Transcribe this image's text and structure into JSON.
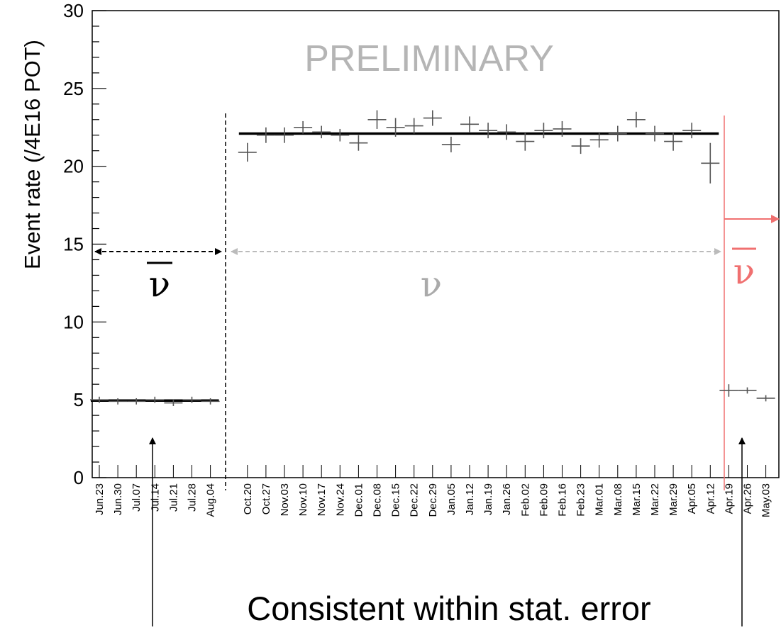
{
  "chart_data": {
    "type": "scatter",
    "watermark": "PRELIMINARY",
    "ylabel": "Event rate (/4E16 POT)",
    "xlabel": "",
    "ylim": [
      0,
      30
    ],
    "yticks": [
      0,
      5,
      10,
      15,
      20,
      25,
      30
    ],
    "categories": [
      "Jun.23",
      "Jun.30",
      "Jul.07",
      "Jul.14",
      "Jul.21",
      "Jul.28",
      "Aug.04",
      "",
      "Oct.20",
      "Oct.27",
      "Nov.03",
      "Nov.10",
      "Nov.17",
      "Nov.24",
      "Dec.01",
      "Dec.08",
      "Dec.15",
      "Dec.22",
      "Dec.29",
      "Jan.05",
      "Jan.12",
      "Jan.19",
      "Jan.26",
      "Feb.02",
      "Feb.09",
      "Feb.16",
      "Feb.23",
      "Mar.01",
      "Mar.08",
      "Mar.15",
      "Mar.22",
      "Mar.29",
      "Apr.05",
      "Apr.12",
      "Apr.19",
      "Apr.26",
      "May.03"
    ],
    "series": [
      {
        "color": "#555555",
        "x": [
          "Jun.23",
          "Jun.30",
          "Jul.07",
          "Jul.14",
          "Jul.21",
          "Jul.28",
          "Aug.04"
        ],
        "y": [
          5.0,
          4.9,
          4.9,
          5.0,
          4.8,
          5.0,
          4.9
        ],
        "err": [
          0.2,
          0.2,
          0.2,
          0.2,
          0.2,
          0.2,
          0.2
        ]
      },
      {
        "color": "#555555",
        "x": [
          "Oct.20",
          "Oct.27",
          "Nov.03",
          "Nov.10",
          "Nov.17",
          "Nov.24",
          "Dec.01",
          "Dec.08",
          "Dec.15",
          "Dec.22",
          "Dec.29",
          "Jan.05",
          "Jan.12",
          "Jan.19",
          "Jan.26",
          "Feb.02",
          "Feb.09",
          "Feb.16",
          "Feb.23",
          "Mar.01",
          "Mar.08",
          "Mar.15",
          "Mar.22",
          "Mar.29",
          "Apr.05",
          "Apr.12"
        ],
        "y": [
          20.9,
          22.0,
          22.0,
          22.5,
          22.2,
          22.0,
          21.5,
          23.0,
          22.5,
          22.6,
          23.1,
          21.4,
          22.7,
          22.3,
          22.2,
          21.6,
          22.3,
          22.4,
          21.3,
          21.7,
          22.1,
          23.0,
          22.1,
          21.6,
          22.3,
          20.2
        ],
        "err": [
          0.6,
          0.5,
          0.5,
          0.4,
          0.4,
          0.4,
          0.5,
          0.6,
          0.6,
          0.5,
          0.5,
          0.5,
          0.5,
          0.5,
          0.5,
          0.6,
          0.5,
          0.5,
          0.5,
          0.5,
          0.5,
          0.5,
          0.5,
          0.6,
          0.5,
          1.3
        ]
      },
      {
        "color": "#555555",
        "x": [
          "Apr.19",
          "Apr.26",
          "May.03"
        ],
        "y": [
          5.6,
          5.6,
          5.1
        ],
        "err": [
          0.4,
          0.2,
          0.2
        ]
      }
    ],
    "fits": [
      {
        "from": "Jun.23",
        "to": "Aug.04",
        "y": 4.95,
        "color": "#000000"
      },
      {
        "from": "Oct.20",
        "to": "Apr.12",
        "y": 22.1,
        "color": "#000000"
      }
    ],
    "period_labels": [
      {
        "glyph": "ν",
        "overline": true,
        "color": "#000000"
      },
      {
        "glyph": "ν",
        "overline": false,
        "color": "#aaaaaa"
      },
      {
        "glyph": "ν",
        "overline": true,
        "color": "#f07070"
      }
    ],
    "annotation": "Consistent within stat. error",
    "grid": false,
    "legend": "none"
  }
}
